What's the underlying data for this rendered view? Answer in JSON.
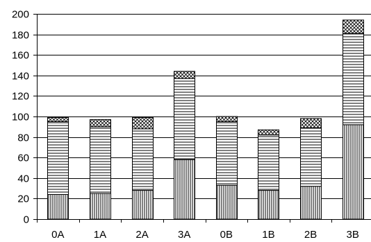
{
  "chart_data": {
    "type": "bar",
    "stacked": true,
    "categories": [
      "0A",
      "1A",
      "2A",
      "3A",
      "0B",
      "1B",
      "2B",
      "3B"
    ],
    "series": [
      {
        "pattern": "vertical-lines",
        "values": [
          24,
          25,
          28,
          58,
          33,
          28,
          32,
          92
        ]
      },
      {
        "pattern": "horizontal-lines",
        "values": [
          71,
          65,
          60,
          79,
          62,
          54,
          57,
          89
        ]
      },
      {
        "pattern": "crosshatch",
        "values": [
          4,
          7,
          11,
          7,
          5,
          5,
          9,
          13
        ]
      }
    ],
    "ylim": [
      0,
      200
    ],
    "yticks": [
      0,
      20,
      40,
      60,
      80,
      100,
      120,
      140,
      160,
      180,
      200
    ],
    "grid": true,
    "legend": "none",
    "title": "",
    "xlabel": "",
    "ylabel": "",
    "colors": {
      "bar_stroke": "#000000",
      "grid": "#000000",
      "background": "#ffffff"
    }
  }
}
